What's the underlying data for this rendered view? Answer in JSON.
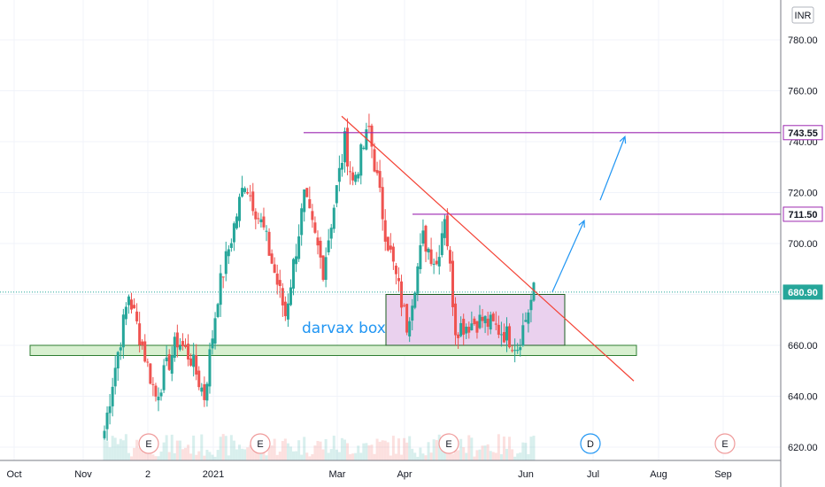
{
  "currency_badge": "INR",
  "colors": {
    "up": "#26a69a",
    "down": "#ef5350",
    "resistance": "#9c27b0",
    "trendline": "#f44336",
    "arrow": "#2196f3",
    "box_fill": "#e1bee7",
    "support_fill": "#d8f0d0",
    "current_price": "#26a69a",
    "earnings": "#ef9a9a",
    "dividend": "#2196f3"
  },
  "chart_data": {
    "type": "candlestick",
    "y_axis": {
      "min": 615,
      "max": 792,
      "ticks": [
        "620.00",
        "640.00",
        "660.00",
        "680.00",
        "700.00",
        "720.00",
        "740.00",
        "760.00",
        "780.00"
      ]
    },
    "x_axis": {
      "ticks": [
        "Oct",
        "Nov",
        "2",
        "2021",
        "Mar",
        "Apr",
        "Jun",
        "Jul",
        "Aug",
        "Sep"
      ]
    },
    "grid": true,
    "price_labels": [
      {
        "id": "resistance-high",
        "value": 743.55,
        "text": "743.55",
        "kind": "resistance"
      },
      {
        "id": "resistance-mid",
        "value": 711.5,
        "text": "711.50",
        "kind": "resistance"
      },
      {
        "id": "current",
        "value": 680.9,
        "text": "680.90",
        "kind": "current"
      }
    ],
    "annotations": {
      "darvas_box": {
        "label": "darvax box",
        "top": 680,
        "bottom": 660
      },
      "support_zone": {
        "top": 660,
        "bottom": 656
      },
      "trendline": {
        "from": 750,
        "to": 646
      },
      "arrows": [
        {
          "from": 681,
          "to": 709
        },
        {
          "from": 717,
          "to": 742
        }
      ]
    },
    "events": [
      {
        "type": "E",
        "label": "E"
      },
      {
        "type": "E",
        "label": "E"
      },
      {
        "type": "E",
        "label": "E"
      },
      {
        "type": "D",
        "label": "D"
      },
      {
        "type": "E",
        "label": "E"
      }
    ],
    "segments": [
      {
        "bars": 4,
        "from": 620,
        "to": 646
      },
      {
        "bars": 6,
        "from": 646,
        "to": 680
      },
      {
        "bars": 10,
        "from": 680,
        "to": 640
      },
      {
        "bars": 8,
        "from": 640,
        "to": 662
      },
      {
        "bars": 5,
        "from": 662,
        "to": 655
      },
      {
        "bars": 5,
        "from": 655,
        "to": 640
      },
      {
        "bars": 5,
        "from": 640,
        "to": 680
      },
      {
        "bars": 10,
        "from": 680,
        "to": 725
      },
      {
        "bars": 7,
        "from": 725,
        "to": 705
      },
      {
        "bars": 8,
        "from": 705,
        "to": 672
      },
      {
        "bars": 7,
        "from": 672,
        "to": 718
      },
      {
        "bars": 7,
        "from": 718,
        "to": 690
      },
      {
        "bars": 8,
        "from": 690,
        "to": 740
      },
      {
        "bars": 3,
        "from": 740,
        "to": 724
      },
      {
        "bars": 6,
        "from": 724,
        "to": 745
      },
      {
        "bars": 6,
        "from": 745,
        "to": 705
      },
      {
        "bars": 8,
        "from": 705,
        "to": 668
      },
      {
        "bars": 6,
        "from": 668,
        "to": 702
      },
      {
        "bars": 5,
        "from": 702,
        "to": 692
      },
      {
        "bars": 3,
        "from": 692,
        "to": 712
      },
      {
        "bars": 4,
        "from": 712,
        "to": 667
      },
      {
        "bars": 10,
        "from": 667,
        "to": 670
      },
      {
        "bars": 8,
        "from": 670,
        "to": 665
      },
      {
        "bars": 5,
        "from": 665,
        "to": 660
      },
      {
        "bars": 6,
        "from": 660,
        "to": 681
      }
    ]
  }
}
